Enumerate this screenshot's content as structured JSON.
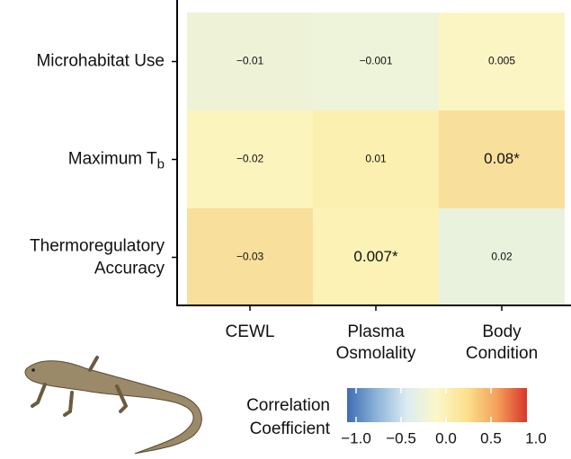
{
  "chart_data": {
    "type": "heatmap",
    "x_categories": [
      "CEWL",
      "Plasma Osmolality",
      "Body Condition"
    ],
    "y_categories": [
      "Microhabitat Use",
      {
        "text": "Maximum T",
        "subscript": "b"
      },
      "Thermoregulatory Accuracy"
    ],
    "values": [
      [
        -0.01,
        -0.001,
        0.005
      ],
      [
        -0.02,
        0.01,
        0.08
      ],
      [
        -0.03,
        0.007,
        0.02
      ]
    ],
    "value_labels": [
      [
        "−0.01",
        "−0.001",
        "0.005"
      ],
      [
        "−0.02",
        "0.01",
        "0.08*"
      ],
      [
        "−0.03",
        "0.007*",
        "0.02"
      ]
    ],
    "cell_colors": [
      [
        "#eef3d8",
        "#eef4d9",
        "#fbf5c3"
      ],
      [
        "#fcf4bd",
        "#fcf0b0",
        "#f9df9c"
      ],
      [
        "#f9df9c",
        "#fcf2b6",
        "#e9f2dd"
      ]
    ],
    "colorbar": {
      "title": "Correlation Coefficient",
      "clim": [
        -1.1,
        0.9
      ],
      "ticks": [
        {
          "value": -1.0,
          "label": "−1.0"
        },
        {
          "value": -0.5,
          "label": "−0.5"
        },
        {
          "value": 0.0,
          "label": "0.0"
        },
        {
          "value": 0.5,
          "label": "0.5"
        },
        {
          "value": 1.0,
          "label": "1.0"
        }
      ],
      "colors": [
        "#3e6db3",
        "#8db4d9",
        "#dcecf2",
        "#fbf7c8",
        "#fbe08c",
        "#f4a05a",
        "#d9362a"
      ]
    }
  }
}
